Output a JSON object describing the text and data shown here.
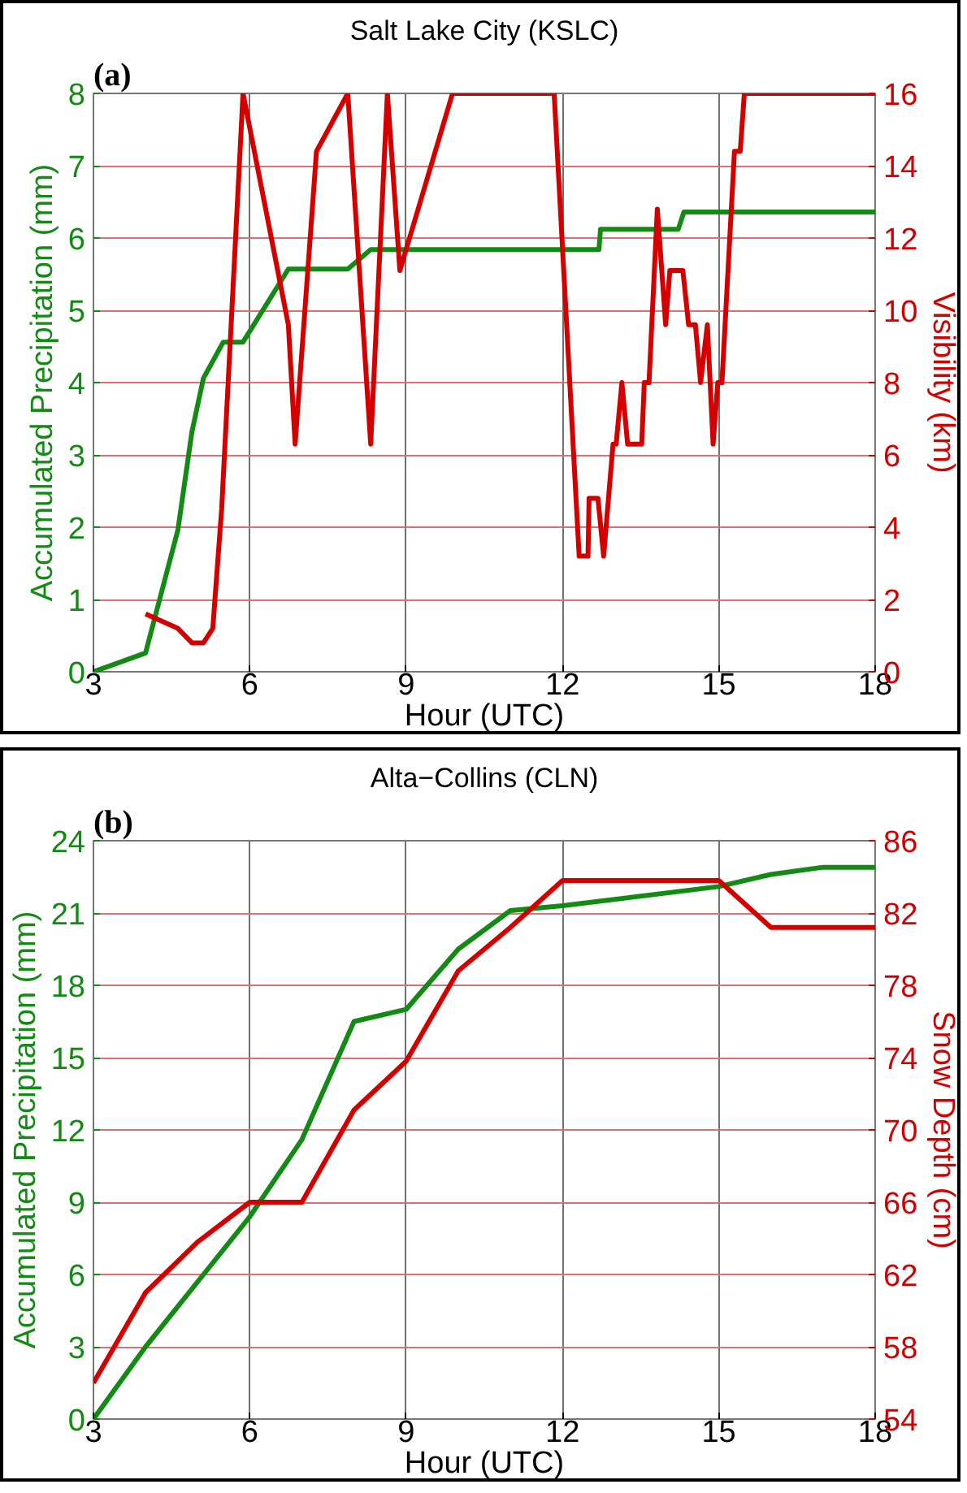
{
  "chart_data": [
    {
      "type": "line",
      "title": "Salt Lake City (KSLC)",
      "xlabel": "Hour (UTC)",
      "ylabel": "Accumulated Precipitation (mm)",
      "y2label": "Visibility (km)",
      "annotations": [
        "(a)"
      ],
      "xlim": [
        3,
        18
      ],
      "xticks": [
        3,
        6,
        9,
        12,
        15,
        18
      ],
      "ylim": [
        0,
        8
      ],
      "yticks": [
        0,
        1,
        2,
        3,
        4,
        5,
        6,
        7,
        8
      ],
      "y2lim": [
        0,
        16
      ],
      "y2ticks": [
        0,
        2,
        4,
        6,
        8,
        10,
        12,
        14,
        16
      ],
      "grid": true,
      "series": [
        {
          "color": "#138a13",
          "x": [
            3,
            4.0,
            4.62,
            4.89,
            5.11,
            5.49,
            5.87,
            6.74,
            7.88,
            8.32,
            12.7,
            12.73,
            14.22,
            14.33,
            18
          ],
          "values": [
            0,
            0.26,
            1.96,
            3.32,
            4.06,
            4.56,
            4.56,
            5.57,
            5.57,
            5.84,
            5.84,
            6.12,
            6.12,
            6.36,
            6.36
          ]
        },
        {
          "color": "#d40000",
          "axis": "y2",
          "x": [
            4.0,
            4.62,
            4.89,
            5.11,
            5.29,
            5.46,
            5.87,
            6.74,
            6.87,
            7.28,
            7.88,
            8.32,
            8.64,
            8.88,
            9.89,
            11.84,
            12.32,
            12.49,
            12.51,
            12.68,
            12.79,
            12.97,
            13.03,
            13.14,
            13.25,
            13.52,
            13.57,
            13.66,
            13.82,
            13.98,
            14.06,
            14.31,
            14.42,
            14.55,
            14.65,
            14.78,
            14.89,
            14.98,
            15.06,
            15.3,
            15.41,
            15.49,
            18
          ],
          "values": [
            1.6,
            1.2,
            0.8,
            0.8,
            1.2,
            4.5,
            16,
            9.6,
            6.3,
            14.4,
            16,
            6.3,
            16,
            11.1,
            16,
            16,
            3.2,
            3.2,
            4.8,
            4.8,
            3.2,
            6.3,
            6.3,
            8.0,
            6.3,
            6.3,
            8.0,
            8.0,
            12.8,
            9.6,
            11.1,
            11.1,
            9.6,
            9.6,
            8.0,
            9.6,
            6.3,
            8.0,
            8.0,
            14.4,
            14.4,
            16,
            16
          ]
        }
      ]
    },
    {
      "type": "line",
      "title": "Alta−Collins (CLN)",
      "xlabel": "Hour (UTC)",
      "ylabel": "Accumulated Precipitation (mm)",
      "y2label": "Snow Depth (cm)",
      "annotations": [
        "(b)"
      ],
      "xlim": [
        3,
        18
      ],
      "xticks": [
        3,
        6,
        9,
        12,
        15,
        18
      ],
      "ylim": [
        0,
        24
      ],
      "yticks": [
        0,
        3,
        6,
        9,
        12,
        15,
        18,
        21,
        24
      ],
      "y2lim": [
        54,
        86
      ],
      "y2ticks": [
        54,
        58,
        62,
        66,
        70,
        74,
        78,
        82,
        86
      ],
      "grid": true,
      "series": [
        {
          "color": "#138a13",
          "x": [
            3,
            4,
            5,
            6,
            7,
            8,
            9,
            10,
            11,
            12,
            15,
            16,
            17,
            18
          ],
          "values": [
            0,
            3.0,
            5.7,
            8.4,
            11.6,
            16.5,
            17.0,
            19.5,
            21.1,
            21.3,
            22.1,
            22.6,
            22.9,
            22.9
          ]
        },
        {
          "color": "#d40000",
          "axis": "y2",
          "x": [
            3,
            4,
            5,
            6,
            7,
            8,
            9,
            10,
            11,
            12,
            15,
            16,
            18
          ],
          "values": [
            56.0,
            61.0,
            63.8,
            66.0,
            66.0,
            71.1,
            73.8,
            78.8,
            81.2,
            83.8,
            83.8,
            81.2,
            81.2
          ]
        }
      ]
    }
  ]
}
